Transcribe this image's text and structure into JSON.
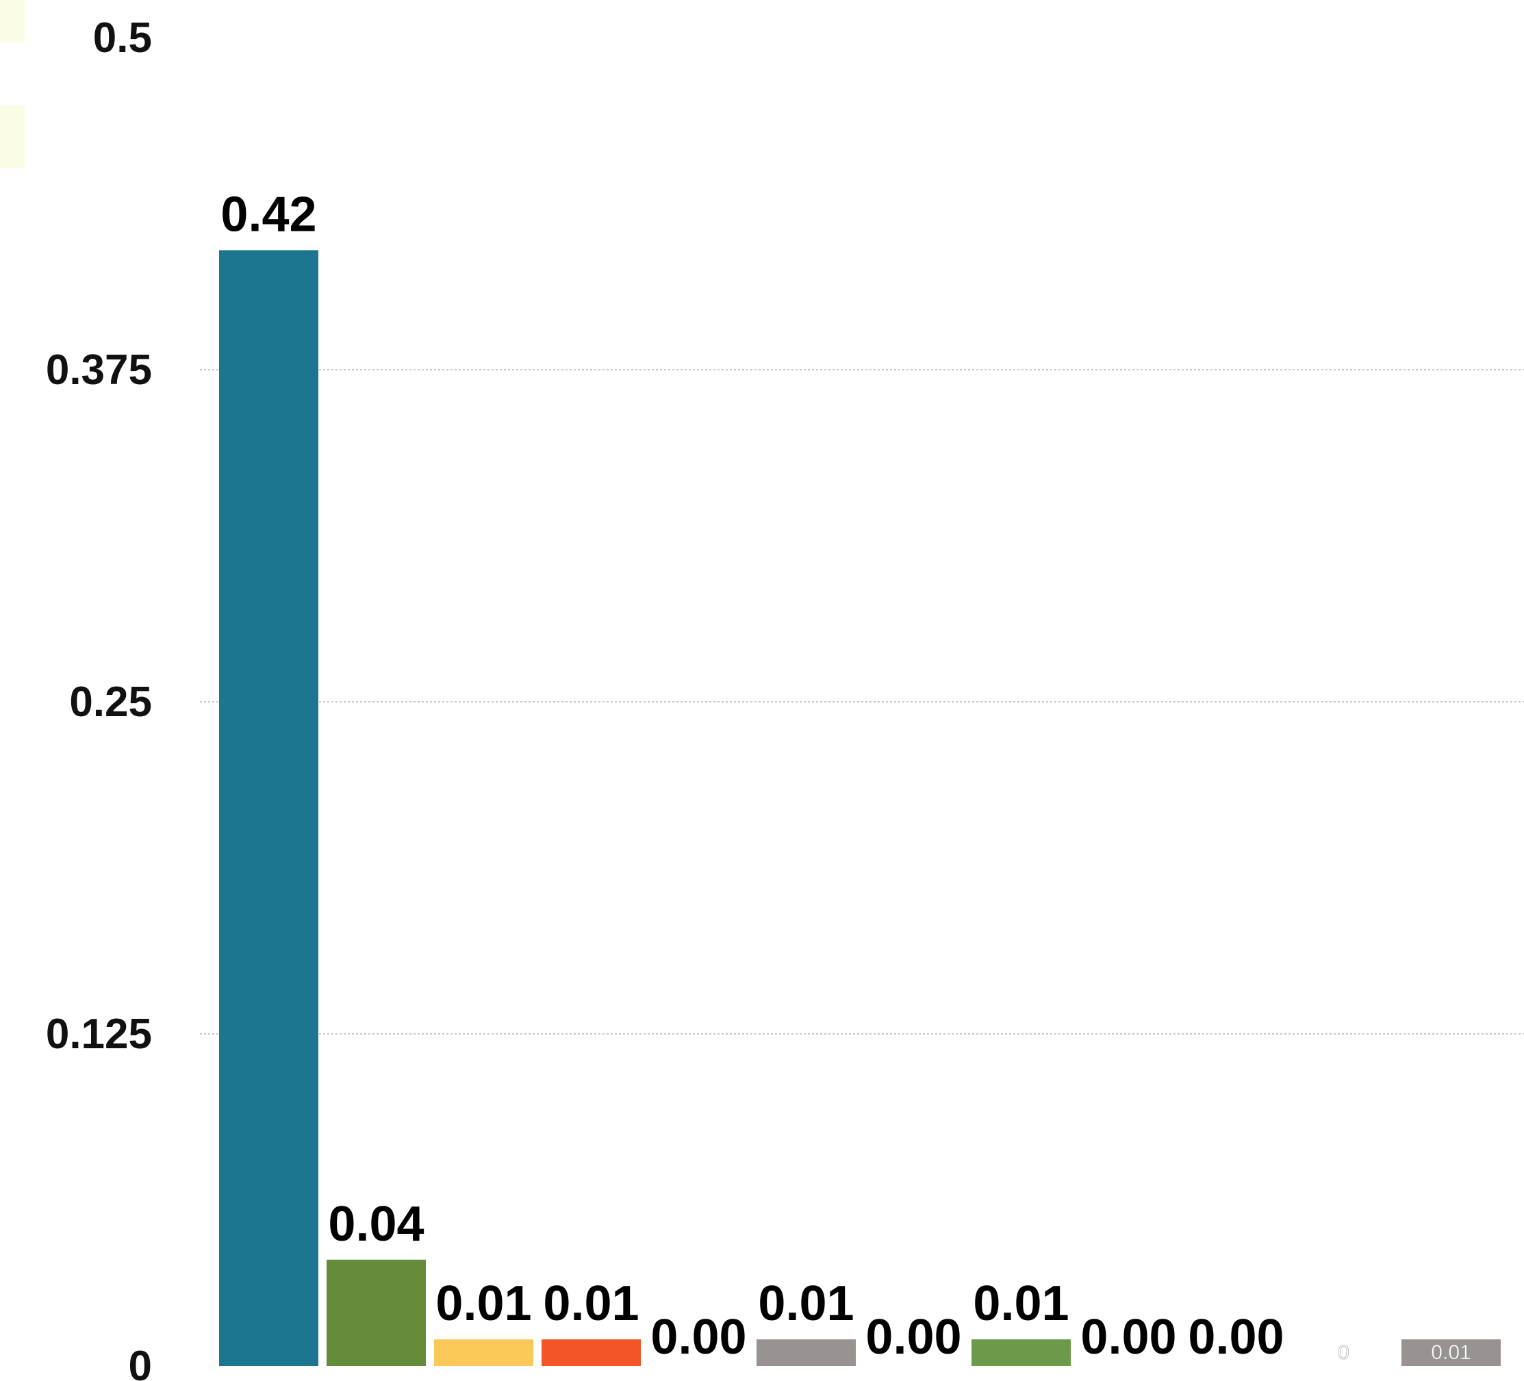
{
  "chart_data": {
    "type": "bar",
    "title": "",
    "xlabel": "",
    "ylabel": "",
    "ylim": [
      0,
      0.5
    ],
    "yticks": [
      0,
      0.125,
      0.25,
      0.375,
      0.5
    ],
    "ytick_labels": [
      "0",
      "0.125",
      "0.25",
      "0.375",
      "0.5"
    ],
    "grid": true,
    "values": [
      0.42,
      0.04,
      0.01,
      0.01,
      0.0,
      0.01,
      0.0,
      0.01,
      0.0,
      0.0,
      0.0,
      0.01
    ],
    "value_labels": [
      "0.42",
      "0.04",
      "0.01",
      "0.01",
      "0.00",
      "0.01",
      "0.00",
      "0.01",
      "0.00",
      "0.00",
      "0",
      "0.01"
    ],
    "colors": [
      "#1c7690",
      "#668c3a",
      "#fbc85a",
      "#f35626",
      "#ffffff",
      "#989390",
      "#ffffff",
      "#6a9a4a",
      "#ffffff",
      "#ffffff",
      "#ffffff",
      "#989390"
    ]
  }
}
